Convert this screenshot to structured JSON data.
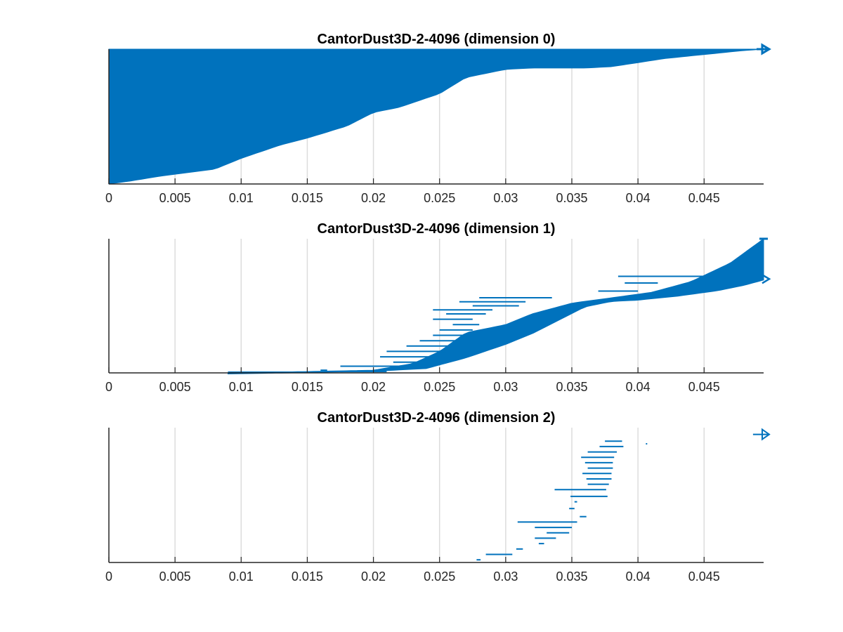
{
  "chart_data": [
    {
      "type": "barcode",
      "title": "CantorDust3D-2-4096 (dimension 0)",
      "xlabel": "",
      "ylabel": "",
      "xlim": [
        0,
        0.0495
      ],
      "xticks": [
        0,
        0.005,
        0.01,
        0.015,
        0.02,
        0.025,
        0.03,
        0.035,
        0.04,
        0.045
      ],
      "xtick_labels": [
        "0",
        "0.005",
        "0.01",
        "0.015",
        "0.02",
        "0.025",
        "0.03",
        "0.035",
        "0.04",
        "0.045"
      ],
      "grid": "vertical",
      "color": "#0072bd",
      "infinite_bars": 1,
      "bar_count": 4096,
      "profile_description": "sorted by death; each bar starts at 0",
      "death_profile": [
        [
          0.0,
          0.0
        ],
        [
          0.0015,
          0.02
        ],
        [
          0.004,
          0.06
        ],
        [
          0.008,
          0.11
        ],
        [
          0.01,
          0.19
        ],
        [
          0.013,
          0.29
        ],
        [
          0.015,
          0.34
        ],
        [
          0.018,
          0.43
        ],
        [
          0.02,
          0.53
        ],
        [
          0.022,
          0.57
        ],
        [
          0.025,
          0.67
        ],
        [
          0.027,
          0.79
        ],
        [
          0.03,
          0.85
        ],
        [
          0.032,
          0.86
        ],
        [
          0.036,
          0.86
        ],
        [
          0.038,
          0.87
        ],
        [
          0.04,
          0.9
        ],
        [
          0.042,
          0.93
        ],
        [
          0.045,
          0.96
        ],
        [
          0.048,
          0.99
        ],
        [
          0.0495,
          1.0
        ]
      ]
    },
    {
      "type": "barcode",
      "title": "CantorDust3D-2-4096 (dimension 1)",
      "xlabel": "",
      "ylabel": "",
      "xlim": [
        0,
        0.0495
      ],
      "xticks": [
        0,
        0.005,
        0.01,
        0.015,
        0.02,
        0.025,
        0.03,
        0.035,
        0.04,
        0.045
      ],
      "xtick_labels": [
        "0",
        "0.005",
        "0.01",
        "0.015",
        "0.02",
        "0.025",
        "0.03",
        "0.035",
        "0.04",
        "0.045"
      ],
      "grid": "vertical",
      "color": "#0072bd",
      "infinite_bars": 1,
      "band": {
        "lower": [
          [
            0.009,
            0.0
          ],
          [
            0.015,
            0.01
          ],
          [
            0.02,
            0.02
          ],
          [
            0.024,
            0.04
          ],
          [
            0.027,
            0.12
          ],
          [
            0.03,
            0.22
          ],
          [
            0.032,
            0.3
          ],
          [
            0.034,
            0.4
          ],
          [
            0.036,
            0.5
          ],
          [
            0.038,
            0.54
          ],
          [
            0.04,
            0.55
          ],
          [
            0.043,
            0.58
          ],
          [
            0.046,
            0.62
          ],
          [
            0.048,
            0.66
          ],
          [
            0.0495,
            0.7
          ]
        ],
        "upper": [
          [
            0.009,
            0.0
          ],
          [
            0.015,
            0.01
          ],
          [
            0.02,
            0.02
          ],
          [
            0.023,
            0.07
          ],
          [
            0.025,
            0.16
          ],
          [
            0.027,
            0.3
          ],
          [
            0.03,
            0.36
          ],
          [
            0.032,
            0.44
          ],
          [
            0.035,
            0.52
          ],
          [
            0.038,
            0.56
          ],
          [
            0.041,
            0.6
          ],
          [
            0.044,
            0.68
          ],
          [
            0.047,
            0.82
          ],
          [
            0.0495,
            1.0
          ]
        ]
      },
      "bars": [
        {
          "y": 0.72,
          "birth": 0.0385,
          "death": 0.0465
        },
        {
          "y": 0.67,
          "birth": 0.039,
          "death": 0.0415
        },
        {
          "y": 0.61,
          "birth": 0.037,
          "death": 0.04
        },
        {
          "y": 0.56,
          "birth": 0.028,
          "death": 0.0335
        },
        {
          "y": 0.53,
          "birth": 0.0265,
          "death": 0.0315
        },
        {
          "y": 0.5,
          "birth": 0.0275,
          "death": 0.031
        },
        {
          "y": 0.47,
          "birth": 0.0245,
          "death": 0.029
        },
        {
          "y": 0.44,
          "birth": 0.0255,
          "death": 0.0285
        },
        {
          "y": 0.4,
          "birth": 0.0245,
          "death": 0.0275
        },
        {
          "y": 0.36,
          "birth": 0.026,
          "death": 0.028
        },
        {
          "y": 0.32,
          "birth": 0.025,
          "death": 0.0275
        },
        {
          "y": 0.28,
          "birth": 0.0245,
          "death": 0.027
        },
        {
          "y": 0.24,
          "birth": 0.0235,
          "death": 0.0265
        },
        {
          "y": 0.2,
          "birth": 0.0225,
          "death": 0.0265
        },
        {
          "y": 0.16,
          "birth": 0.021,
          "death": 0.0255
        },
        {
          "y": 0.12,
          "birth": 0.0205,
          "death": 0.0245
        },
        {
          "y": 0.08,
          "birth": 0.0215,
          "death": 0.025
        },
        {
          "y": 0.05,
          "birth": 0.0175,
          "death": 0.022
        },
        {
          "y": 0.02,
          "birth": 0.016,
          "death": 0.0165
        }
      ]
    },
    {
      "type": "barcode",
      "title": "CantorDust3D-2-4096 (dimension 2)",
      "xlabel": "",
      "ylabel": "",
      "xlim": [
        0,
        0.0495
      ],
      "xticks": [
        0,
        0.005,
        0.01,
        0.015,
        0.02,
        0.025,
        0.03,
        0.035,
        0.04,
        0.045
      ],
      "xtick_labels": [
        "0",
        "0.005",
        "0.01",
        "0.015",
        "0.02",
        "0.025",
        "0.03",
        "0.035",
        "0.04",
        "0.045"
      ],
      "grid": "vertical",
      "color": "#0072bd",
      "infinite_bars": [
        {
          "y": 0.95,
          "birth": 0.0487
        }
      ],
      "bars": [
        {
          "y": 0.02,
          "birth": 0.0278,
          "death": 0.0281
        },
        {
          "y": 0.06,
          "birth": 0.0285,
          "death": 0.0305
        },
        {
          "y": 0.1,
          "birth": 0.0308,
          "death": 0.0313
        },
        {
          "y": 0.14,
          "birth": 0.0325,
          "death": 0.0329
        },
        {
          "y": 0.18,
          "birth": 0.0322,
          "death": 0.0338
        },
        {
          "y": 0.22,
          "birth": 0.0331,
          "death": 0.0348
        },
        {
          "y": 0.26,
          "birth": 0.0322,
          "death": 0.035
        },
        {
          "y": 0.3,
          "birth": 0.0309,
          "death": 0.0354
        },
        {
          "y": 0.34,
          "birth": 0.0356,
          "death": 0.0361
        },
        {
          "y": 0.4,
          "birth": 0.0348,
          "death": 0.0352
        },
        {
          "y": 0.45,
          "birth": 0.0352,
          "death": 0.0354
        },
        {
          "y": 0.49,
          "birth": 0.0349,
          "death": 0.0377
        },
        {
          "y": 0.54,
          "birth": 0.0337,
          "death": 0.0376
        },
        {
          "y": 0.58,
          "birth": 0.0362,
          "death": 0.0378
        },
        {
          "y": 0.62,
          "birth": 0.0361,
          "death": 0.038
        },
        {
          "y": 0.66,
          "birth": 0.0358,
          "death": 0.038
        },
        {
          "y": 0.7,
          "birth": 0.0362,
          "death": 0.0381
        },
        {
          "y": 0.74,
          "birth": 0.036,
          "death": 0.0381
        },
        {
          "y": 0.78,
          "birth": 0.0357,
          "death": 0.0382
        },
        {
          "y": 0.82,
          "birth": 0.0362,
          "death": 0.0384
        },
        {
          "y": 0.86,
          "birth": 0.0371,
          "death": 0.0389
        },
        {
          "y": 0.9,
          "birth": 0.0375,
          "death": 0.0388
        },
        {
          "y": 0.88,
          "birth": 0.0406,
          "death": 0.0407
        }
      ]
    }
  ]
}
